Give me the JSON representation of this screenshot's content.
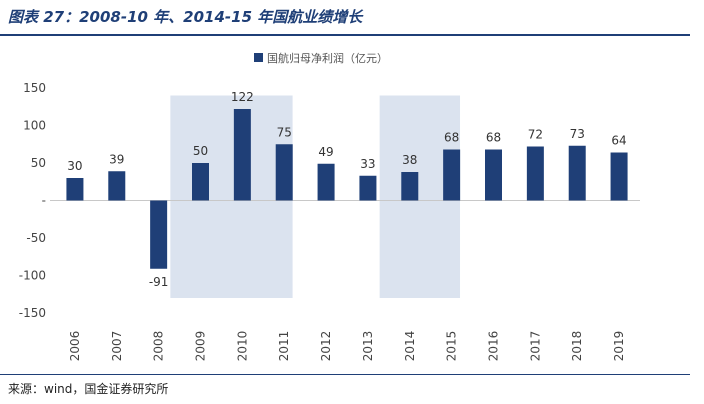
{
  "header": {
    "title": "图表 27：2008-10 年、2014-15 年国航业绩增长"
  },
  "footer": {
    "source": "来源：wind，国金证券研究所"
  },
  "colors": {
    "bar": "#1f3f77",
    "highlight": "#dbe3ef",
    "accent": "#1f3f77"
  },
  "chart_data": {
    "type": "bar",
    "title": "2008-10 年、2014-15 年国航业绩增长",
    "categories": [
      "2006",
      "2007",
      "2008",
      "2009",
      "2010",
      "2011",
      "2012",
      "2013",
      "2014",
      "2015",
      "2016",
      "2017",
      "2018",
      "2019"
    ],
    "series": [
      {
        "name": "国航归母净利润（亿元）",
        "values": [
          30,
          39,
          -91,
          50,
          122,
          75,
          49,
          33,
          38,
          68,
          68,
          72,
          73,
          64
        ]
      }
    ],
    "ylim": [
      -150,
      150
    ],
    "yticks": [
      150,
      100,
      50,
      0,
      -50,
      -100,
      -150
    ],
    "ytick_labels": [
      "150",
      "100",
      "50",
      "-",
      "-50",
      "-100",
      "-150"
    ],
    "highlight_ranges": [
      [
        "2009",
        "2011"
      ],
      [
        "2014",
        "2015"
      ]
    ],
    "legend_position": "top-center",
    "xlabel": "",
    "ylabel": ""
  }
}
